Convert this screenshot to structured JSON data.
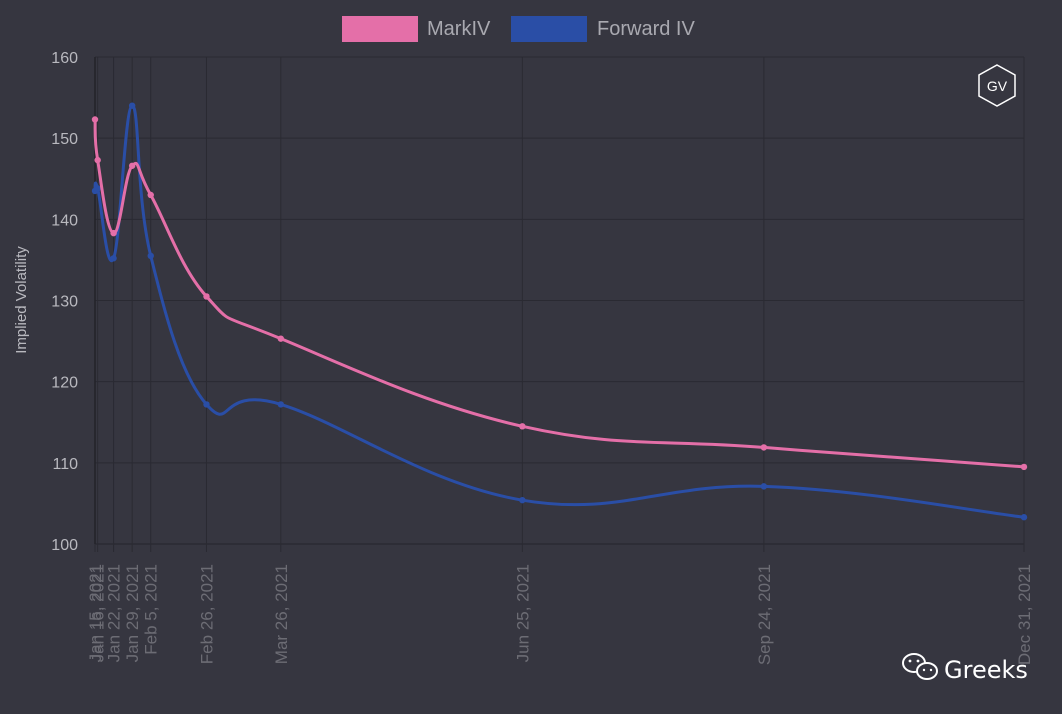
{
  "chart_data": {
    "type": "line",
    "ylabel": "Implied Volatility",
    "ylim": [
      100,
      160
    ],
    "yticks": [
      100,
      110,
      120,
      130,
      140,
      150,
      160
    ],
    "grid": true,
    "legend_position": "top-center",
    "x": [
      "2021-01-15",
      "2021-01-16",
      "2021-01-22",
      "2021-01-29",
      "2021-02-05",
      "2021-02-26",
      "2021-03-26",
      "2021-06-25",
      "2021-09-24",
      "2021-12-31"
    ],
    "x_labels": [
      "Jan 15, 2021",
      "Jan 16, 2021",
      "Jan 22, 2021",
      "Jan 29, 2021",
      "Feb 5, 2021",
      "Feb 26, 2021",
      "Mar 26, 2021",
      "Jun 25, 2021",
      "Sep 24, 2021",
      "Dec 31, 2021"
    ],
    "series": [
      {
        "name": "MarkIV",
        "color": "#e46fa8",
        "values": [
          152.3,
          147.3,
          138.3,
          146.6,
          143.0,
          130.5,
          125.3,
          114.5,
          111.9,
          109.5
        ]
      },
      {
        "name": "Forward IV",
        "color": "#2a4ea6",
        "values": [
          143.5,
          143.8,
          135.2,
          154.0,
          135.5,
          117.2,
          117.2,
          105.4,
          107.1,
          103.3
        ]
      }
    ]
  },
  "badge": {
    "text": "GV"
  },
  "watermark": {
    "text": "Greeks",
    "icon": "wechat-icon"
  },
  "colors": {
    "background": "#363640",
    "grid": "#2a2a32",
    "markiv": "#e46fa8",
    "forward": "#2a4ea6"
  }
}
